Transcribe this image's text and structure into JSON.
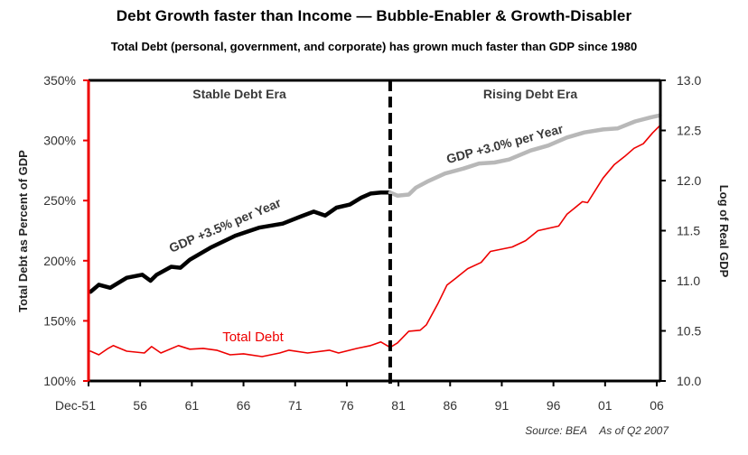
{
  "chart_data": {
    "type": "line",
    "title": "Debt Growth faster than Income  —  Bubble-Enabler & Growth-Disabler",
    "subtitle": "Total Debt (personal, government, and corporate) has grown much faster than GDP since 1980",
    "xlabel": "",
    "ylabel_left": "Total Debt as Percent of GDP",
    "ylabel_right": "Log of Real GDP",
    "xlim": [
      1951,
      2006.4
    ],
    "ylim_left": [
      100,
      350
    ],
    "ylim_right": [
      10.0,
      13.0
    ],
    "x_ticks": [
      {
        "value": 1951,
        "label": "Dec-51"
      },
      {
        "value": 1956,
        "label": "56"
      },
      {
        "value": 1961,
        "label": "61"
      },
      {
        "value": 1966,
        "label": "66"
      },
      {
        "value": 1971,
        "label": "71"
      },
      {
        "value": 1976,
        "label": "76"
      },
      {
        "value": 1981,
        "label": "81"
      },
      {
        "value": 1986,
        "label": "86"
      },
      {
        "value": 1991,
        "label": "91"
      },
      {
        "value": 1996,
        "label": "96"
      },
      {
        "value": 2001,
        "label": "01"
      },
      {
        "value": 2006,
        "label": "06"
      }
    ],
    "y_ticks_left": [
      {
        "value": 100,
        "label": "100%"
      },
      {
        "value": 150,
        "label": "150%"
      },
      {
        "value": 200,
        "label": "200%"
      },
      {
        "value": 250,
        "label": "250%"
      },
      {
        "value": 300,
        "label": "300%"
      },
      {
        "value": 350,
        "label": "350%"
      }
    ],
    "y_ticks_right": [
      {
        "value": 10.0,
        "label": "10.0"
      },
      {
        "value": 10.5,
        "label": "10.5"
      },
      {
        "value": 11.0,
        "label": "11.0"
      },
      {
        "value": 11.5,
        "label": "11.5"
      },
      {
        "value": 12.0,
        "label": "12.0"
      },
      {
        "value": 12.5,
        "label": "12.5"
      },
      {
        "value": 13.0,
        "label": "13.0"
      }
    ],
    "grid": false,
    "divider_year": 1980.2,
    "eras": [
      {
        "label": "Stable Debt Era"
      },
      {
        "label": "Rising Debt Era"
      }
    ],
    "series": [
      {
        "name": "Total Debt",
        "axis": "left",
        "color": "#ee0000",
        "x": [
          1951.2,
          1952.0,
          1952.9,
          1953.4,
          1954.7,
          1956.4,
          1957.1,
          1958.0,
          1959.7,
          1960.8,
          1962.1,
          1963.4,
          1964.7,
          1966.0,
          1967.8,
          1969.5,
          1970.4,
          1972.2,
          1974.3,
          1975.2,
          1977.0,
          1978.3,
          1979.3,
          1980.2,
          1980.9,
          1982.0,
          1983.1,
          1983.7,
          1984.8,
          1985.7,
          1986.6,
          1987.7,
          1989.0,
          1989.9,
          1992.0,
          1993.3,
          1994.5,
          1996.5,
          1997.3,
          1998.8,
          1999.3,
          2000.8,
          2001.9,
          2002.9,
          2003.8,
          2004.7,
          2005.6,
          2006.3
        ],
        "values": [
          124.8,
          121.8,
          127.1,
          129.4,
          124.8,
          123.3,
          128.6,
          123.3,
          129.4,
          126.4,
          127.1,
          125.6,
          121.8,
          122.6,
          120.3,
          123.3,
          125.6,
          123.3,
          125.6,
          123.3,
          127.1,
          129.4,
          132.4,
          127.9,
          131.6,
          141.4,
          142.2,
          146.7,
          164.0,
          179.8,
          185.8,
          193.4,
          198.6,
          207.7,
          211.4,
          216.7,
          225.0,
          228.8,
          238.6,
          249.1,
          248.3,
          268.7,
          280.0,
          286.7,
          293.5,
          297.3,
          306.3,
          312.3
        ]
      },
      {
        "name": "Log of Real GDP (1951-1980)",
        "axis": "right",
        "color": "#000000",
        "x": [
          1951.2,
          1952.0,
          1953.1,
          1954.7,
          1956.2,
          1957.0,
          1957.6,
          1959.0,
          1959.9,
          1960.8,
          1962.8,
          1965.2,
          1967.5,
          1969.8,
          1971.5,
          1972.8,
          1973.9,
          1975.0,
          1976.3,
          1977.4,
          1978.3,
          1979.3,
          1980.2
        ],
        "values": [
          10.89,
          10.96,
          10.93,
          11.03,
          11.06,
          11.0,
          11.06,
          11.14,
          11.13,
          11.21,
          11.33,
          11.45,
          11.53,
          11.57,
          11.64,
          11.69,
          11.65,
          11.73,
          11.76,
          11.83,
          11.87,
          11.88,
          11.88
        ]
      },
      {
        "name": "Log of Real GDP (1980-2007)",
        "axis": "right",
        "color": "#b8b8b8",
        "x": [
          1980.2,
          1980.9,
          1982.0,
          1982.7,
          1983.8,
          1985.5,
          1987.3,
          1988.8,
          1990.3,
          1991.7,
          1993.8,
          1995.5,
          1997.3,
          1999.0,
          2000.8,
          2002.2,
          2003.9,
          2005.4,
          2006.3
        ],
        "values": [
          11.88,
          11.85,
          11.86,
          11.93,
          11.99,
          12.07,
          12.12,
          12.17,
          12.18,
          12.21,
          12.3,
          12.35,
          12.43,
          12.48,
          12.51,
          12.52,
          12.59,
          12.63,
          12.65
        ]
      }
    ],
    "annotations": {
      "gdp_stable": "GDP +3.5% per Year",
      "gdp_rising": "GDP +3.0% per Year",
      "total_debt": "Total Debt"
    },
    "source": "Source: BEA",
    "as_of": "As of Q2 2007"
  }
}
